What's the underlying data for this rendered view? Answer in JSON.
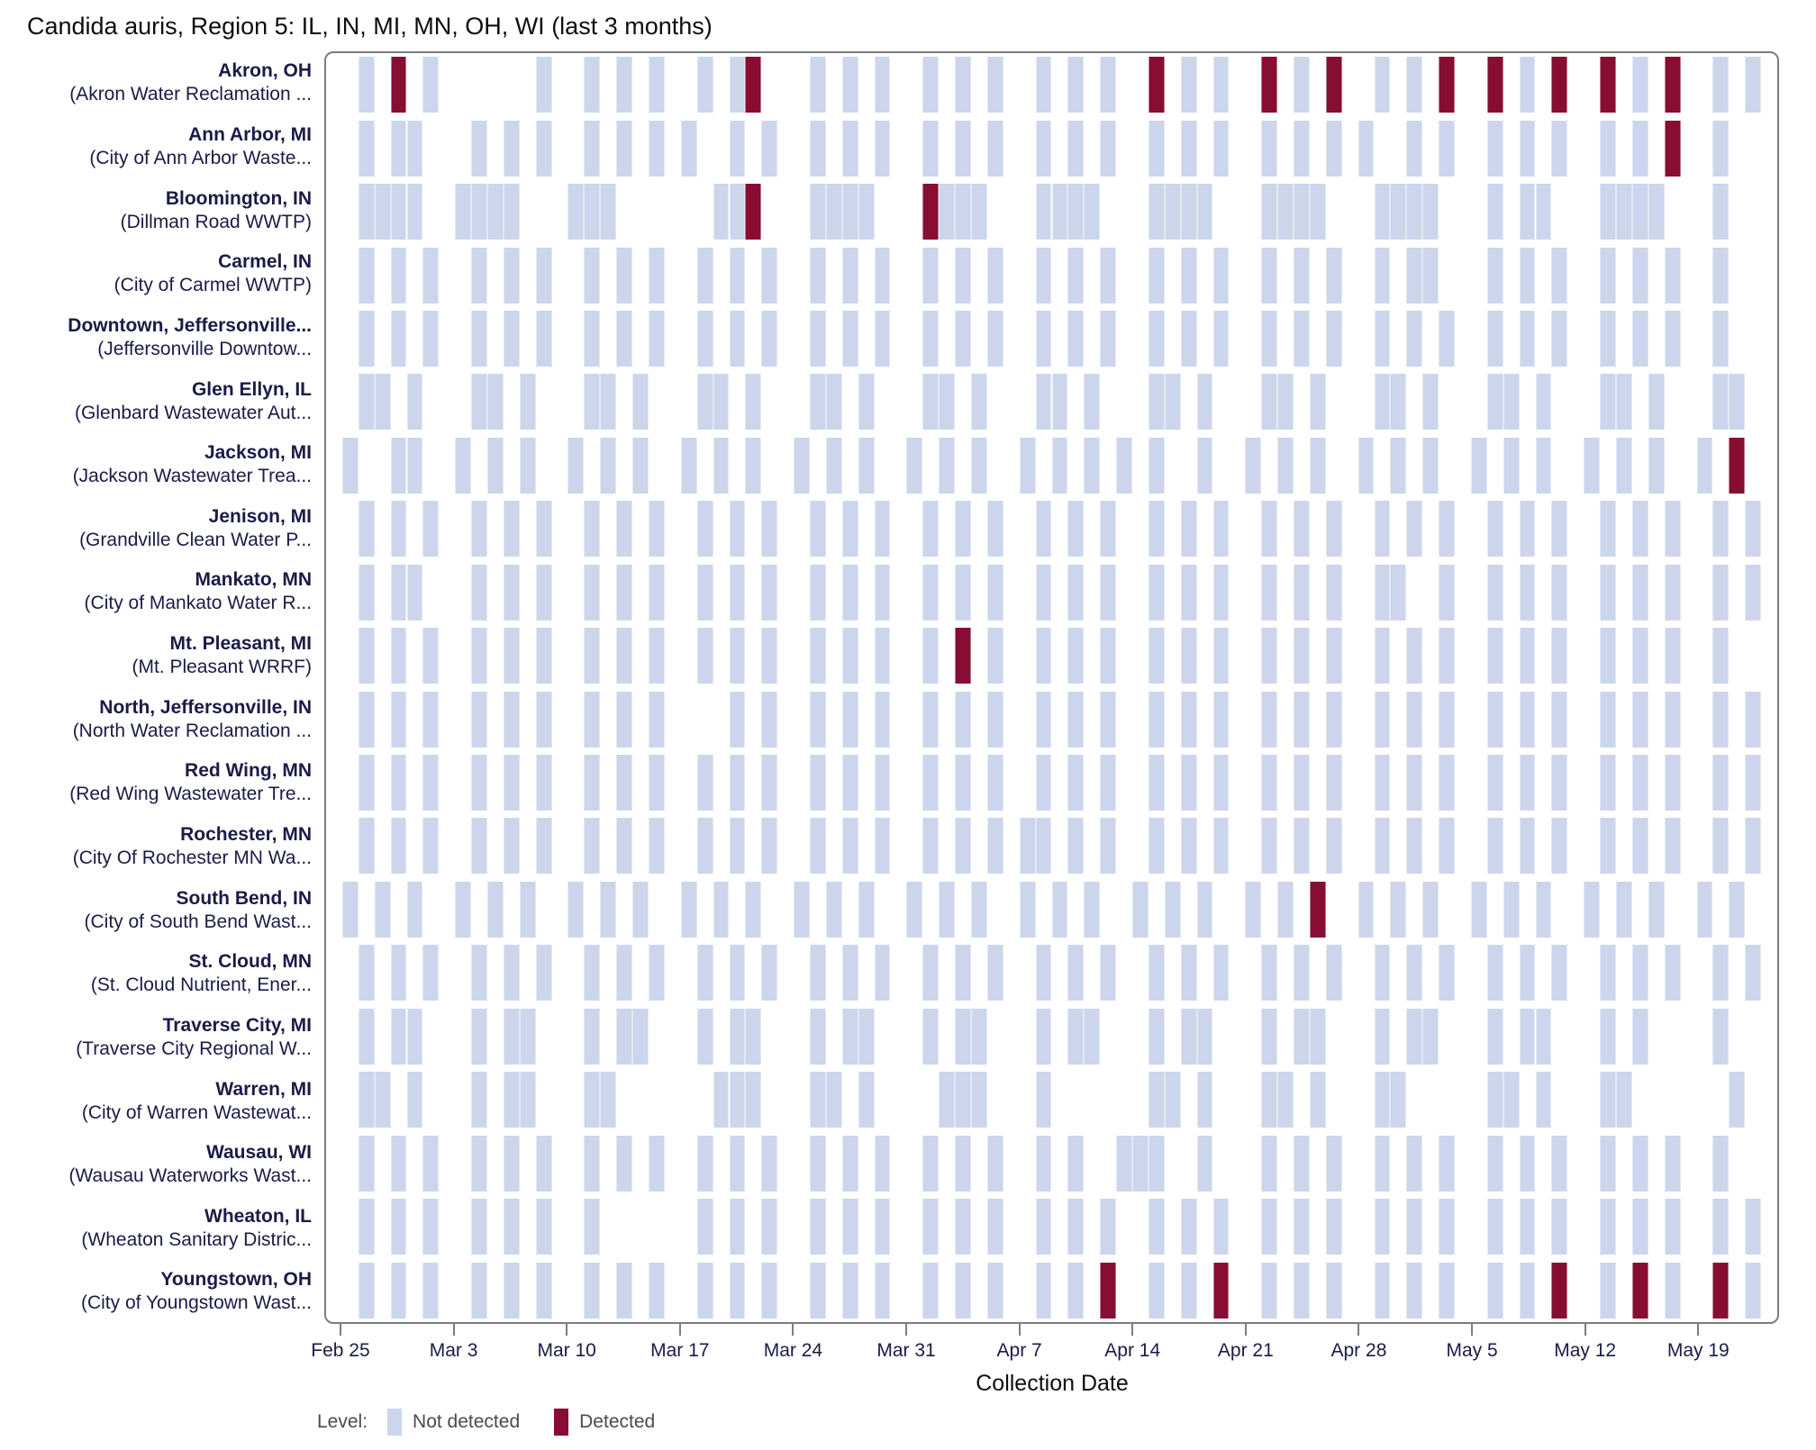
{
  "title": "Candida auris, Region 5: IL, IN, MI, MN, OH, WI (last 3 months)",
  "axis": {
    "xlabel": "Collection Date"
  },
  "legend": {
    "label": "Level:",
    "items": [
      {
        "key": "not_detected",
        "label": "Not detected",
        "color": "#ccd5eb"
      },
      {
        "key": "detected",
        "label": "Detected",
        "color": "#870d33"
      }
    ]
  },
  "colors": {
    "not_detected": "#ccd5eb",
    "detected": "#870d33",
    "frame": "#7d7d7d",
    "row_label_text": "#1b1b47",
    "legend_text": "#4a4a4a"
  },
  "chart_data": {
    "type": "heatmap",
    "title": "Candida auris, Region 5: IL, IN, MI, MN, OH, WI (last 3 months)",
    "xlabel": "Collection Date",
    "ylabel": "",
    "legend_position": "bottom-left",
    "grid": false,
    "x_axis": {
      "days_total": 90,
      "day_index_reference": "day 1 = Feb 25 tick; one column per day",
      "ticks": [
        {
          "day": 1,
          "label": "Feb 25"
        },
        {
          "day": 8,
          "label": "Mar 3"
        },
        {
          "day": 15,
          "label": "Mar 10"
        },
        {
          "day": 22,
          "label": "Mar 17"
        },
        {
          "day": 29,
          "label": "Mar 24"
        },
        {
          "day": 36,
          "label": "Mar 31"
        },
        {
          "day": 43,
          "label": "Apr 7"
        },
        {
          "day": 50,
          "label": "Apr 14"
        },
        {
          "day": 57,
          "label": "Apr 21"
        },
        {
          "day": 64,
          "label": "Apr 28"
        },
        {
          "day": 71,
          "label": "May 5"
        },
        {
          "day": 78,
          "label": "May 12"
        },
        {
          "day": 85,
          "label": "May 19"
        }
      ]
    },
    "legend_entries": [
      "Not detected",
      "Detected"
    ],
    "rows": [
      {
        "city": "Akron, OH",
        "facility": "(Akron Water Reclamation ...",
        "not_detected_days": [
          2,
          6,
          13,
          16,
          18,
          20,
          23,
          25,
          30,
          32,
          34,
          37,
          39,
          41,
          44,
          46,
          48,
          53,
          55,
          60,
          65,
          67,
          74,
          81,
          86,
          88
        ],
        "detected_days": [
          4,
          26,
          51,
          58,
          62,
          69,
          72,
          76,
          79,
          83
        ]
      },
      {
        "city": "Ann Arbor, MI",
        "facility": "(City of Ann Arbor Waste...",
        "not_detected_days": [
          2,
          4,
          5,
          9,
          11,
          13,
          16,
          18,
          20,
          22,
          25,
          27,
          30,
          32,
          34,
          37,
          39,
          41,
          44,
          46,
          48,
          51,
          53,
          55,
          58,
          60,
          62,
          64,
          67,
          69,
          72,
          74,
          76,
          79,
          81,
          86
        ],
        "detected_days": [
          83
        ]
      },
      {
        "city": "Bloomington, IN",
        "facility": "(Dillman Road WWTP)",
        "not_detected_days": [
          2,
          3,
          4,
          5,
          8,
          9,
          10,
          11,
          15,
          16,
          17,
          24,
          25,
          30,
          31,
          32,
          33,
          38,
          39,
          40,
          44,
          45,
          46,
          47,
          51,
          52,
          53,
          54,
          58,
          59,
          60,
          61,
          65,
          66,
          67,
          68,
          72,
          74,
          75,
          79,
          80,
          81,
          82,
          86
        ],
        "detected_days": [
          26,
          37
        ]
      },
      {
        "city": "Carmel, IN",
        "facility": "(City of Carmel WWTP)",
        "not_detected_days": [
          2,
          4,
          6,
          9,
          11,
          13,
          16,
          18,
          20,
          23,
          25,
          27,
          30,
          32,
          34,
          37,
          39,
          41,
          44,
          46,
          48,
          51,
          53,
          55,
          58,
          60,
          62,
          65,
          67,
          68,
          72,
          74,
          76,
          79,
          81,
          83,
          86
        ],
        "detected_days": []
      },
      {
        "city": "Downtown, Jeffersonville...",
        "facility": "(Jeffersonville Downtow...",
        "not_detected_days": [
          2,
          4,
          6,
          9,
          11,
          13,
          16,
          18,
          20,
          23,
          25,
          27,
          30,
          32,
          34,
          37,
          39,
          41,
          44,
          46,
          48,
          51,
          53,
          55,
          58,
          60,
          62,
          65,
          67,
          69,
          72,
          74,
          76,
          79,
          81,
          83,
          86
        ],
        "detected_days": []
      },
      {
        "city": "Glen Ellyn, IL",
        "facility": "(Glenbard Wastewater Aut...",
        "not_detected_days": [
          2,
          3,
          5,
          9,
          10,
          12,
          16,
          17,
          19,
          23,
          24,
          26,
          30,
          31,
          33,
          37,
          38,
          40,
          44,
          45,
          47,
          51,
          52,
          54,
          58,
          59,
          61,
          65,
          66,
          68,
          72,
          73,
          75,
          79,
          80,
          82,
          86,
          87
        ],
        "detected_days": []
      },
      {
        "city": "Jackson, MI",
        "facility": "(Jackson Wastewater Trea...",
        "not_detected_days": [
          1,
          4,
          5,
          8,
          10,
          12,
          15,
          17,
          19,
          22,
          24,
          26,
          29,
          31,
          33,
          36,
          38,
          40,
          43,
          45,
          47,
          49,
          51,
          54,
          57,
          59,
          61,
          64,
          66,
          68,
          71,
          73,
          75,
          78,
          80,
          82,
          85
        ],
        "detected_days": [
          87
        ]
      },
      {
        "city": "Jenison, MI",
        "facility": "(Grandville Clean Water P...",
        "not_detected_days": [
          2,
          4,
          6,
          9,
          11,
          13,
          16,
          18,
          20,
          23,
          25,
          27,
          30,
          32,
          34,
          37,
          39,
          41,
          44,
          46,
          48,
          51,
          53,
          55,
          58,
          60,
          62,
          65,
          67,
          69,
          72,
          74,
          76,
          79,
          81,
          83,
          86,
          88
        ],
        "detected_days": []
      },
      {
        "city": "Mankato, MN",
        "facility": "(City of Mankato Water R...",
        "not_detected_days": [
          2,
          4,
          5,
          9,
          11,
          13,
          16,
          18,
          20,
          23,
          25,
          27,
          30,
          32,
          34,
          37,
          39,
          41,
          44,
          46,
          48,
          51,
          53,
          55,
          58,
          60,
          62,
          65,
          66,
          69,
          72,
          74,
          76,
          79,
          81,
          83,
          86,
          88
        ],
        "detected_days": []
      },
      {
        "city": "Mt. Pleasant, MI",
        "facility": "(Mt. Pleasant WRRF)",
        "not_detected_days": [
          2,
          4,
          6,
          9,
          11,
          13,
          16,
          18,
          20,
          23,
          25,
          27,
          30,
          32,
          34,
          37,
          41,
          44,
          46,
          48,
          51,
          53,
          55,
          58,
          60,
          62,
          65,
          67,
          69,
          72,
          74,
          76,
          79,
          81,
          83,
          86
        ],
        "detected_days": [
          39
        ]
      },
      {
        "city": "North, Jeffersonville, IN",
        "facility": "(North Water Reclamation ...",
        "not_detected_days": [
          2,
          4,
          6,
          9,
          11,
          13,
          16,
          18,
          20,
          25,
          27,
          30,
          32,
          34,
          37,
          39,
          41,
          44,
          46,
          48,
          51,
          53,
          55,
          58,
          60,
          62,
          65,
          67,
          69,
          72,
          74,
          76,
          79,
          81,
          83,
          86,
          88
        ],
        "detected_days": []
      },
      {
        "city": "Red Wing, MN",
        "facility": "(Red Wing Wastewater Tre...",
        "not_detected_days": [
          2,
          4,
          6,
          9,
          11,
          13,
          16,
          18,
          20,
          23,
          25,
          27,
          30,
          32,
          34,
          37,
          39,
          41,
          44,
          46,
          48,
          51,
          53,
          55,
          58,
          60,
          62,
          65,
          67,
          69,
          72,
          74,
          76,
          79,
          81,
          83,
          86,
          88
        ],
        "detected_days": []
      },
      {
        "city": "Rochester, MN",
        "facility": "(City Of Rochester MN Wa...",
        "not_detected_days": [
          2,
          4,
          6,
          9,
          11,
          13,
          16,
          18,
          20,
          23,
          25,
          27,
          30,
          32,
          34,
          37,
          39,
          41,
          43,
          44,
          46,
          48,
          51,
          53,
          55,
          58,
          60,
          62,
          65,
          67,
          69,
          72,
          74,
          76,
          79,
          81,
          83,
          86,
          88
        ],
        "detected_days": []
      },
      {
        "city": "South Bend, IN",
        "facility": "(City of South Bend Wast...",
        "not_detected_days": [
          1,
          3,
          5,
          8,
          10,
          12,
          15,
          17,
          19,
          22,
          24,
          26,
          29,
          31,
          33,
          36,
          38,
          40,
          43,
          45,
          47,
          50,
          52,
          54,
          57,
          59,
          64,
          66,
          68,
          71,
          73,
          75,
          78,
          80,
          82,
          85,
          87
        ],
        "detected_days": [
          61
        ]
      },
      {
        "city": "St. Cloud, MN",
        "facility": "(St. Cloud Nutrient, Ener...",
        "not_detected_days": [
          2,
          4,
          6,
          9,
          11,
          13,
          16,
          18,
          20,
          23,
          25,
          27,
          30,
          32,
          34,
          37,
          39,
          41,
          44,
          46,
          48,
          51,
          53,
          55,
          58,
          60,
          62,
          65,
          67,
          69,
          72,
          74,
          76,
          79,
          81,
          83,
          86,
          88
        ],
        "detected_days": []
      },
      {
        "city": "Traverse City, MI",
        "facility": "(Traverse City Regional W...",
        "not_detected_days": [
          2,
          4,
          5,
          9,
          11,
          12,
          16,
          18,
          19,
          23,
          25,
          26,
          30,
          32,
          33,
          37,
          39,
          40,
          44,
          46,
          47,
          51,
          53,
          54,
          58,
          60,
          61,
          65,
          67,
          68,
          72,
          74,
          75,
          79,
          81,
          86
        ],
        "detected_days": []
      },
      {
        "city": "Warren, MI",
        "facility": "(City of Warren Wastewat...",
        "not_detected_days": [
          2,
          3,
          5,
          9,
          11,
          12,
          16,
          17,
          24,
          25,
          26,
          30,
          31,
          33,
          38,
          39,
          40,
          44,
          51,
          52,
          54,
          58,
          59,
          61,
          65,
          66,
          72,
          73,
          75,
          79,
          80,
          87
        ],
        "detected_days": []
      },
      {
        "city": "Wausau, WI",
        "facility": "(Wausau Waterworks Wast...",
        "not_detected_days": [
          2,
          4,
          6,
          9,
          11,
          13,
          16,
          18,
          20,
          23,
          25,
          27,
          30,
          32,
          34,
          37,
          39,
          41,
          44,
          46,
          49,
          50,
          51,
          54,
          58,
          60,
          62,
          65,
          67,
          69,
          72,
          74,
          76,
          79,
          81,
          83,
          86
        ],
        "detected_days": []
      },
      {
        "city": "Wheaton, IL",
        "facility": "(Wheaton Sanitary Distric...",
        "not_detected_days": [
          2,
          4,
          6,
          9,
          11,
          13,
          16,
          23,
          25,
          27,
          30,
          32,
          34,
          37,
          39,
          41,
          44,
          46,
          48,
          51,
          53,
          55,
          58,
          60,
          62,
          65,
          67,
          69,
          72,
          74,
          76,
          79,
          81,
          83,
          86,
          88
        ],
        "detected_days": []
      },
      {
        "city": "Youngstown, OH",
        "facility": "(City of Youngstown Wast...",
        "not_detected_days": [
          2,
          4,
          6,
          9,
          11,
          13,
          16,
          18,
          20,
          23,
          25,
          27,
          30,
          32,
          34,
          37,
          39,
          41,
          44,
          46,
          51,
          53,
          58,
          60,
          62,
          65,
          67,
          69,
          72,
          74,
          79,
          83,
          88
        ],
        "detected_days": [
          48,
          55,
          76,
          81,
          86
        ]
      }
    ]
  }
}
